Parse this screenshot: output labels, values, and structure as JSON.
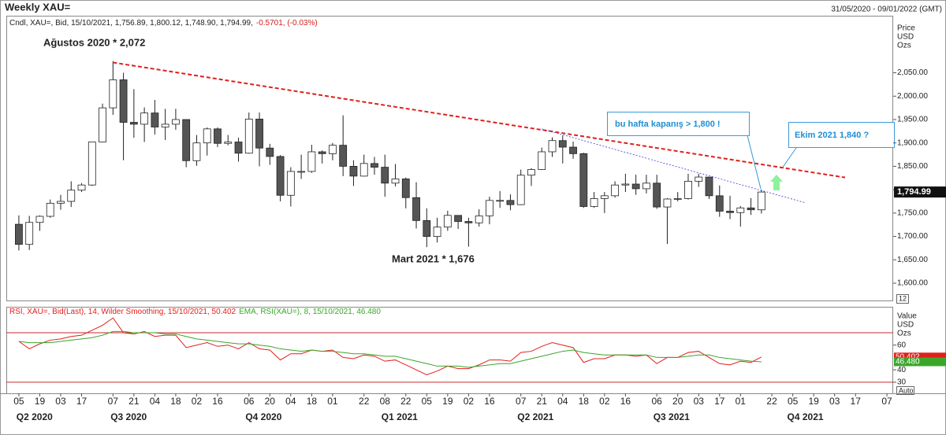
{
  "chart_data": [
    {
      "type": "candlestick",
      "title": "Weekly XAU=",
      "date_range": "31/05/2020 - 09/01/2022 (GMT)",
      "info": "Cndl, XAU=, Bid, 15/10/2021, 1,756.89, 1,800.12, 1,748.90, 1,794.99,",
      "change": "-0.5701, (-0.03%)",
      "axis_label": [
        "Price",
        "USD",
        "Ozs"
      ],
      "scale_box": "12",
      "ylim": [
        1563,
        2172
      ],
      "yticks": [
        {
          "value": 2050,
          "label": "2,050.00"
        },
        {
          "value": 2000,
          "label": "2,000.00"
        },
        {
          "value": 1950,
          "label": "1,950.00"
        },
        {
          "value": 1900,
          "label": "1,900.00"
        },
        {
          "value": 1850,
          "label": "1,850.00"
        },
        {
          "value": 1800,
          "label": "1,800.00"
        },
        {
          "value": 1750,
          "label": "1,750.00"
        },
        {
          "value": 1700,
          "label": "1,700.00"
        },
        {
          "value": 1650,
          "label": "1,650.00"
        },
        {
          "value": 1600,
          "label": "1,600.00"
        }
      ],
      "last_price": {
        "value": 1794.99,
        "label": "1,794.99"
      },
      "up_color": "#ffffff",
      "down_color": "#555555",
      "open": [
        1726,
        1683,
        1730,
        1743,
        1771,
        1775,
        1799,
        1810,
        1902,
        1975,
        2035,
        1944,
        1940,
        1964,
        1934,
        1940,
        1950,
        1862,
        1900,
        1930,
        1899,
        1902,
        1878,
        1951,
        1889,
        1871,
        1788,
        1839,
        1839,
        1881,
        1877,
        1895,
        1850,
        1829,
        1856,
        1848,
        1814,
        1823,
        1783,
        1734,
        1700,
        1720,
        1745,
        1732,
        1729,
        1744,
        1777,
        1777,
        1768,
        1831,
        1843,
        1881,
        1905,
        1891,
        1877,
        1764,
        1781,
        1787,
        1810,
        1812,
        1802,
        1814,
        1763,
        1780,
        1781,
        1818,
        1827,
        1787,
        1754,
        1751,
        1761,
        1756.89
      ],
      "high": [
        1745,
        1744,
        1745,
        1779,
        1789,
        1818,
        1814,
        1902,
        1984,
        2075,
        2050,
        2015,
        1976,
        1992,
        1973,
        1973,
        1950,
        1917,
        1933,
        1933,
        1917,
        1911,
        1965,
        1965,
        1898,
        1874,
        1848,
        1875,
        1896,
        1884,
        1900,
        1959,
        1863,
        1875,
        1870,
        1875,
        1855,
        1826,
        1816,
        1760,
        1740,
        1755,
        1745,
        1740,
        1758,
        1785,
        1797,
        1790,
        1843,
        1846,
        1890,
        1912,
        1916,
        1903,
        1879,
        1795,
        1795,
        1818,
        1834,
        1832,
        1832,
        1832,
        1782,
        1795,
        1834,
        1834,
        1827,
        1809,
        1787,
        1765,
        1782,
        1800.12
      ],
      "low": [
        1670,
        1671,
        1712,
        1740,
        1757,
        1763,
        1795,
        1808,
        1901,
        1960,
        1863,
        1911,
        1902,
        1918,
        1906,
        1928,
        1848,
        1851,
        1873,
        1891,
        1895,
        1860,
        1877,
        1850,
        1853,
        1775,
        1764,
        1823,
        1836,
        1856,
        1863,
        1829,
        1808,
        1828,
        1832,
        1785,
        1807,
        1760,
        1717,
        1677,
        1687,
        1712,
        1716,
        1678,
        1721,
        1726,
        1761,
        1756,
        1767,
        1808,
        1842,
        1870,
        1856,
        1866,
        1761,
        1761,
        1750,
        1783,
        1795,
        1789,
        1792,
        1759,
        1684,
        1775,
        1779,
        1806,
        1780,
        1742,
        1737,
        1721,
        1746,
        1748.9
      ],
      "close": [
        1683,
        1730,
        1743,
        1771,
        1775,
        1799,
        1810,
        1902,
        1975,
        2035,
        1944,
        1940,
        1964,
        1934,
        1940,
        1950,
        1862,
        1900,
        1930,
        1899,
        1902,
        1878,
        1951,
        1889,
        1871,
        1788,
        1839,
        1839,
        1881,
        1877,
        1895,
        1850,
        1829,
        1856,
        1848,
        1814,
        1823,
        1783,
        1734,
        1700,
        1720,
        1745,
        1732,
        1729,
        1744,
        1777,
        1777,
        1768,
        1831,
        1843,
        1881,
        1905,
        1891,
        1877,
        1764,
        1781,
        1787,
        1810,
        1812,
        1802,
        1814,
        1763,
        1780,
        1781,
        1818,
        1827,
        1787,
        1754,
        1751,
        1761,
        1757,
        1794.99
      ],
      "trendlines": [
        {
          "color": "#e0201c",
          "points": [
            [
              9,
              2072
            ],
            [
              79,
              1826
            ]
          ]
        },
        {
          "color": "#3b3bd6",
          "points": [
            [
              50,
              1930
            ],
            [
              75.2,
              1772
            ]
          ]
        }
      ],
      "annotations": [
        "Ağustos 2020 * 2,072",
        "Mart 2021 * 1,676"
      ],
      "callouts": [
        "bu hafta kapanış > 1,800 !",
        "Ekim 2021 1,840 ?"
      ]
    },
    {
      "type": "line",
      "axis_label": [
        "Value",
        "USD",
        "Ozs"
      ],
      "auto": "Auto",
      "ylim": [
        21,
        91
      ],
      "yticks": [
        60,
        40,
        30
      ],
      "levels": [
        70,
        30
      ],
      "xlim": [
        -1.2,
        83.6
      ],
      "xticks": [
        {
          "value": 0,
          "label": "05"
        },
        {
          "value": 2,
          "label": "19"
        },
        {
          "value": 4,
          "label": "03"
        },
        {
          "value": 6,
          "label": "17"
        },
        {
          "value": 9,
          "label": "07"
        },
        {
          "value": 11,
          "label": "21"
        },
        {
          "value": 13,
          "label": "04"
        },
        {
          "value": 15,
          "label": "18"
        },
        {
          "value": 17,
          "label": "02"
        },
        {
          "value": 19,
          "label": "16"
        },
        {
          "value": 22,
          "label": "06"
        },
        {
          "value": 24,
          "label": "20"
        },
        {
          "value": 26,
          "label": "04"
        },
        {
          "value": 28,
          "label": "18"
        },
        {
          "value": 30,
          "label": "01"
        },
        {
          "value": 33,
          "label": "22"
        },
        {
          "value": 35,
          "label": "08"
        },
        {
          "value": 37,
          "label": "22"
        },
        {
          "value": 39,
          "label": "05"
        },
        {
          "value": 41,
          "label": "19"
        },
        {
          "value": 43,
          "label": "02"
        },
        {
          "value": 45,
          "label": "16"
        },
        {
          "value": 48,
          "label": "07"
        },
        {
          "value": 50,
          "label": "21"
        },
        {
          "value": 52,
          "label": "04"
        },
        {
          "value": 54,
          "label": "18"
        },
        {
          "value": 56,
          "label": "02"
        },
        {
          "value": 58,
          "label": "16"
        },
        {
          "value": 61,
          "label": "06"
        },
        {
          "value": 63,
          "label": "20"
        },
        {
          "value": 65,
          "label": "03"
        },
        {
          "value": 67,
          "label": "17"
        },
        {
          "value": 69,
          "label": "01"
        },
        {
          "value": 72,
          "label": "22"
        },
        {
          "value": 74,
          "label": "05"
        },
        {
          "value": 76,
          "label": "19"
        },
        {
          "value": 78,
          "label": "03"
        },
        {
          "value": 80,
          "label": "17"
        },
        {
          "value": 83,
          "label": "07"
        }
      ],
      "quarter_ticks": [
        {
          "value": 1.5,
          "label": "Q2 2020"
        },
        {
          "value": 10.5,
          "label": "Q3 2020"
        },
        {
          "value": 23.4,
          "label": "Q4 2020"
        },
        {
          "value": 36.4,
          "label": "Q1 2021"
        },
        {
          "value": 49.4,
          "label": "Q2 2021"
        },
        {
          "value": 62.4,
          "label": "Q3 2021"
        },
        {
          "value": 75.2,
          "label": "Q4 2021"
        }
      ],
      "series": [
        {
          "name": "RSI, XAU=, Bid(Last), 14, Wilder Smoothing, 15/10/2021, 50.402",
          "color": "#e0201c",
          "last_label": "50.402",
          "values": [
            63,
            57,
            61,
            64,
            65,
            67,
            68,
            72,
            76,
            82,
            70,
            69,
            71,
            67,
            68,
            68,
            58,
            60,
            62,
            59,
            60,
            57,
            62,
            57,
            56,
            48,
            53,
            53,
            56,
            55,
            56,
            50,
            49,
            52,
            51,
            47,
            48,
            44,
            40,
            36,
            39,
            43,
            41,
            41,
            44,
            48,
            48,
            47,
            54,
            55,
            59,
            62,
            60,
            58,
            46,
            49,
            49,
            52,
            52,
            51,
            52,
            45,
            50,
            50,
            54,
            55,
            50,
            45,
            44,
            47,
            46,
            50.402
          ]
        },
        {
          "name": "EMA, RSI(XAU=), 8, 15/10/2021, 46.480",
          "color": "#3aa62a",
          "last_label": "46.480",
          "values": [
            63,
            62,
            62,
            62,
            63,
            64,
            65,
            66,
            68,
            71,
            71,
            70,
            70,
            70,
            69,
            69,
            67,
            65,
            64,
            63,
            62,
            61,
            61,
            60,
            59,
            57,
            56,
            55,
            56,
            55,
            55,
            54,
            53,
            53,
            52,
            51,
            51,
            49,
            47,
            45,
            43,
            43,
            43,
            42,
            43,
            44,
            45,
            45,
            47,
            49,
            51,
            53,
            55,
            56,
            54,
            53,
            52,
            52,
            52,
            52,
            52,
            50,
            50,
            50,
            51,
            52,
            52,
            50,
            49,
            48,
            47,
            46.48
          ]
        }
      ]
    }
  ]
}
